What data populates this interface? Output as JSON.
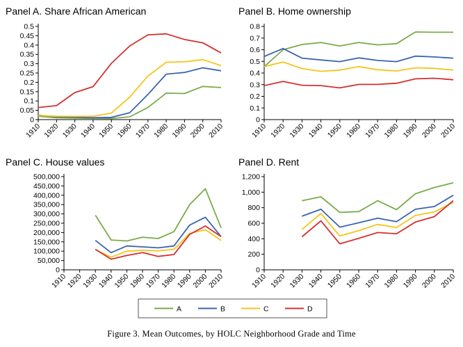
{
  "figure": {
    "caption": "Figure 3. Mean Outcomes, by HOLC Neighborhood Grade and Time"
  },
  "legend": {
    "items": [
      {
        "label": "A",
        "color": "#7aab4a"
      },
      {
        "label": "B",
        "color": "#3b63b0"
      },
      {
        "label": "C",
        "color": "#f5c518"
      },
      {
        "label": "D",
        "color": "#d62f2f"
      }
    ]
  },
  "chart_data": [
    {
      "type": "line",
      "title": "Panel A. Share African American",
      "x": [
        1910,
        1920,
        1930,
        1940,
        1950,
        1960,
        1970,
        1980,
        1990,
        2000,
        2010
      ],
      "ylim": [
        0,
        0.5
      ],
      "yticks": [
        0,
        0.05,
        0.1,
        0.15,
        0.2,
        0.25,
        0.3,
        0.35,
        0.4,
        0.45,
        0.5
      ],
      "ytick_labels": [
        "0",
        "0.05",
        "0.1",
        "0.15",
        "0.2",
        "0.25",
        "0.3",
        "0.35",
        "0.4",
        "0.45",
        "0.5"
      ],
      "series": [
        {
          "name": "A",
          "values": [
            0.018,
            0.01,
            0.008,
            0.007,
            0.006,
            0.015,
            0.065,
            0.142,
            0.14,
            0.178,
            0.172
          ]
        },
        {
          "name": "B",
          "values": [
            0.024,
            0.015,
            0.013,
            0.01,
            0.012,
            0.037,
            0.135,
            0.244,
            0.253,
            0.278,
            0.262
          ]
        },
        {
          "name": "C",
          "values": [
            0.022,
            0.018,
            0.017,
            0.018,
            0.035,
            0.12,
            0.234,
            0.308,
            0.31,
            0.322,
            0.29
          ]
        },
        {
          "name": "D",
          "values": [
            0.065,
            0.075,
            0.145,
            0.177,
            0.302,
            0.395,
            0.455,
            0.46,
            0.43,
            0.412,
            0.358
          ]
        }
      ]
    },
    {
      "type": "line",
      "title": "Panel B. Home ownership",
      "x": [
        1910,
        1920,
        1930,
        1940,
        1950,
        1960,
        1970,
        1980,
        1990,
        2000,
        2010
      ],
      "ylim": [
        0,
        0.8
      ],
      "yticks": [
        0,
        0.1,
        0.2,
        0.3,
        0.4,
        0.5,
        0.6,
        0.7,
        0.8
      ],
      "ytick_labels": [
        "0",
        "0.1",
        "0.2",
        "0.3",
        "0.4",
        "0.5",
        "0.6",
        "0.7",
        "0.8"
      ],
      "series": [
        {
          "name": "A",
          "values": [
            0.455,
            0.6,
            0.645,
            0.662,
            0.632,
            0.662,
            0.642,
            0.652,
            0.752,
            0.75,
            0.75
          ]
        },
        {
          "name": "B",
          "values": [
            0.542,
            0.61,
            0.528,
            0.512,
            0.498,
            0.53,
            0.508,
            0.498,
            0.545,
            0.538,
            0.528
          ]
        },
        {
          "name": "C",
          "values": [
            0.455,
            0.495,
            0.438,
            0.415,
            0.425,
            0.455,
            0.428,
            0.418,
            0.445,
            0.44,
            0.425
          ]
        },
        {
          "name": "D",
          "values": [
            0.292,
            0.328,
            0.295,
            0.292,
            0.272,
            0.302,
            0.302,
            0.312,
            0.35,
            0.355,
            0.342
          ]
        }
      ]
    },
    {
      "type": "line",
      "title": "Panel C. House values",
      "x": [
        1910,
        1920,
        1930,
        1940,
        1950,
        1960,
        1970,
        1980,
        1990,
        2000,
        2010
      ],
      "ylim": [
        0,
        500000
      ],
      "yticks": [
        0,
        50000,
        100000,
        150000,
        200000,
        250000,
        300000,
        350000,
        400000,
        450000,
        500000
      ],
      "ytick_labels": [
        "0",
        "50,000",
        "100,000",
        "150,000",
        "200,000",
        "250,000",
        "300,000",
        "350,000",
        "400,000",
        "450,000",
        "500,000"
      ],
      "series": [
        {
          "name": "A",
          "values": [
            null,
            null,
            293000,
            160000,
            155000,
            175000,
            168000,
            205000,
            350000,
            435000,
            225000
          ]
        },
        {
          "name": "B",
          "values": [
            null,
            null,
            158000,
            92000,
            128000,
            123000,
            118000,
            128000,
            240000,
            282000,
            178000
          ]
        },
        {
          "name": "C",
          "values": [
            null,
            null,
            108000,
            68000,
            100000,
            105000,
            102000,
            110000,
            195000,
            215000,
            158000
          ]
        },
        {
          "name": "D",
          "values": [
            null,
            null,
            110000,
            57000,
            77000,
            92000,
            72000,
            82000,
            190000,
            235000,
            178000
          ]
        }
      ]
    },
    {
      "type": "line",
      "title": "Panel D. Rent",
      "x": [
        1910,
        1920,
        1930,
        1940,
        1950,
        1960,
        1970,
        1980,
        1990,
        2000,
        2010
      ],
      "ylim": [
        0,
        1200
      ],
      "yticks": [
        0,
        200,
        400,
        600,
        800,
        1000,
        1200
      ],
      "ytick_labels": [
        "0",
        "200",
        "400",
        "600",
        "800",
        "1,000",
        "1,200"
      ],
      "series": [
        {
          "name": "A",
          "values": [
            null,
            null,
            890,
            940,
            740,
            750,
            890,
            775,
            980,
            1060,
            1120
          ]
        },
        {
          "name": "B",
          "values": [
            null,
            null,
            690,
            780,
            550,
            605,
            665,
            620,
            780,
            815,
            960
          ]
        },
        {
          "name": "C",
          "values": [
            null,
            null,
            520,
            725,
            435,
            505,
            585,
            545,
            700,
            745,
            870
          ]
        },
        {
          "name": "D",
          "values": [
            null,
            null,
            425,
            630,
            335,
            405,
            480,
            465,
            615,
            685,
            890
          ]
        }
      ]
    }
  ]
}
